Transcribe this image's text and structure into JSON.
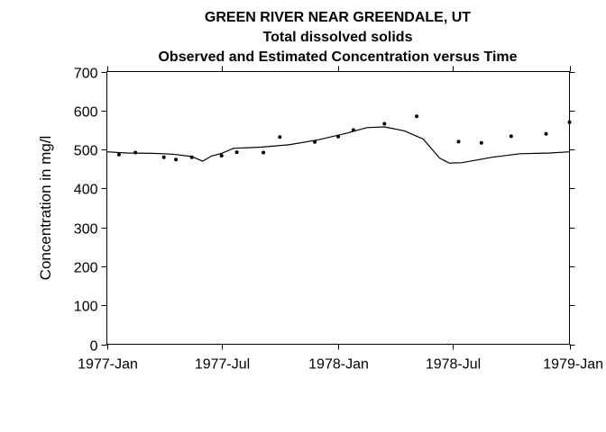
{
  "chart_data": {
    "type": "line",
    "title": "GREEN RIVER NEAR GREENDALE, UT",
    "subtitle": "Total dissolved solids",
    "subtitle2": "Observed and Estimated Concentration versus Time",
    "xlabel": "",
    "ylabel": "Concentration in mg/l",
    "xlim": [
      "1977-01-01",
      "1979-01-01"
    ],
    "ylim": [
      0,
      700
    ],
    "grid": false,
    "x_ticks": [
      {
        "date": "1977-01-01",
        "label": "1977-Jan"
      },
      {
        "date": "1977-07-01",
        "label": "1977-Jul"
      },
      {
        "date": "1978-01-01",
        "label": "1978-Jan"
      },
      {
        "date": "1978-07-01",
        "label": "1978-Jul"
      },
      {
        "date": "1979-01-01",
        "label": "1979-Jan"
      }
    ],
    "y_ticks": [
      0,
      100,
      200,
      300,
      400,
      500,
      600,
      700
    ],
    "series": [
      {
        "kind": "line",
        "points": [
          {
            "x": "1977-01-01",
            "y": 494
          },
          {
            "x": "1977-02-01",
            "y": 491
          },
          {
            "x": "1977-03-15",
            "y": 490
          },
          {
            "x": "1977-04-15",
            "y": 488
          },
          {
            "x": "1977-05-15",
            "y": 482
          },
          {
            "x": "1977-06-01",
            "y": 470
          },
          {
            "x": "1977-06-15",
            "y": 483
          },
          {
            "x": "1977-07-01",
            "y": 490
          },
          {
            "x": "1977-07-20",
            "y": 503
          },
          {
            "x": "1977-09-01",
            "y": 506
          },
          {
            "x": "1977-10-15",
            "y": 512
          },
          {
            "x": "1977-12-01",
            "y": 525
          },
          {
            "x": "1978-01-15",
            "y": 542
          },
          {
            "x": "1978-02-15",
            "y": 556
          },
          {
            "x": "1978-03-15",
            "y": 558
          },
          {
            "x": "1978-04-15",
            "y": 548
          },
          {
            "x": "1978-05-15",
            "y": 527
          },
          {
            "x": "1978-06-10",
            "y": 478
          },
          {
            "x": "1978-06-25",
            "y": 465
          },
          {
            "x": "1978-07-15",
            "y": 466
          },
          {
            "x": "1978-09-01",
            "y": 480
          },
          {
            "x": "1978-10-15",
            "y": 489
          },
          {
            "x": "1978-12-01",
            "y": 491
          },
          {
            "x": "1979-01-01",
            "y": 494
          }
        ]
      },
      {
        "kind": "points",
        "points": [
          {
            "x": "1977-01-20",
            "y": 487
          },
          {
            "x": "1977-02-15",
            "y": 492
          },
          {
            "x": "1977-04-01",
            "y": 480
          },
          {
            "x": "1977-04-20",
            "y": 474
          },
          {
            "x": "1977-05-15",
            "y": 480
          },
          {
            "x": "1977-07-01",
            "y": 484
          },
          {
            "x": "1977-07-25",
            "y": 493
          },
          {
            "x": "1977-09-05",
            "y": 492
          },
          {
            "x": "1977-10-01",
            "y": 532
          },
          {
            "x": "1977-11-25",
            "y": 519
          },
          {
            "x": "1978-01-01",
            "y": 533
          },
          {
            "x": "1978-01-25",
            "y": 550
          },
          {
            "x": "1978-03-15",
            "y": 566
          },
          {
            "x": "1978-05-05",
            "y": 585
          },
          {
            "x": "1978-07-10",
            "y": 520
          },
          {
            "x": "1978-08-15",
            "y": 517
          },
          {
            "x": "1978-10-01",
            "y": 534
          },
          {
            "x": "1978-11-25",
            "y": 540
          },
          {
            "x": "1979-01-01",
            "y": 570
          }
        ]
      }
    ]
  }
}
